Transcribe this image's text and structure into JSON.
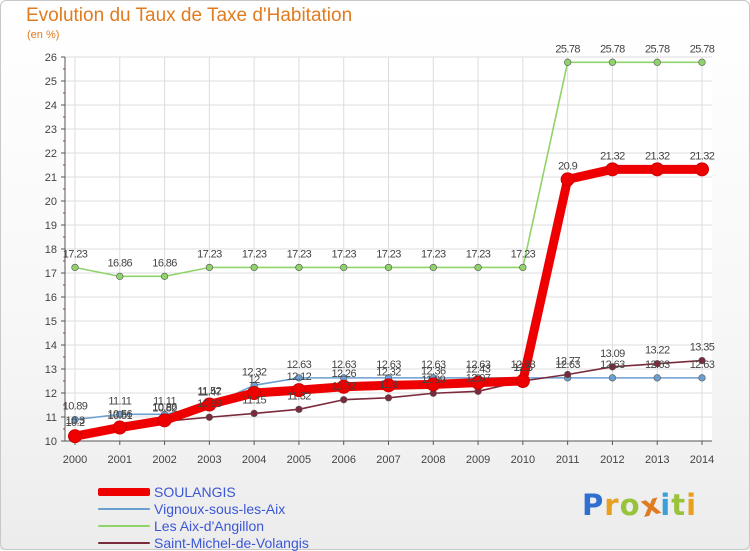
{
  "chart_data": {
    "type": "line",
    "title": "Evolution du Taux de Taxe d'Habitation",
    "unit_label": "(en %)",
    "x": [
      "2000",
      "2001",
      "2002",
      "2003",
      "2004",
      "2005",
      "2006",
      "2007",
      "2008",
      "2009",
      "2010",
      "2011",
      "2012",
      "2013",
      "2014"
    ],
    "ylim": [
      10,
      26
    ],
    "yticks": [
      10,
      11,
      12,
      13,
      14,
      15,
      16,
      17,
      18,
      19,
      20,
      21,
      22,
      23,
      24,
      25,
      26
    ],
    "grid": true,
    "legend_position": "bottom-left",
    "series": [
      {
        "name": "SOULANGIS",
        "color": "#ee0000",
        "values": [
          10.2,
          10.56,
          10.86,
          11.52,
          12.0,
          12.12,
          12.26,
          12.32,
          12.36,
          12.43,
          12.5,
          20.9,
          21.32,
          21.32,
          21.32
        ],
        "labels": [
          "10.2",
          "10.56",
          "10.86",
          "11.52",
          "12",
          "12.12",
          "12.26",
          "12.32",
          "12.36",
          "12.43",
          "12.5",
          "20.9",
          "21.32",
          "21.32",
          "21.32"
        ]
      },
      {
        "name": "Vignoux-sous-les-Aix",
        "color": "#6a9fcf",
        "values": [
          10.89,
          11.11,
          11.11,
          11.47,
          12.32,
          12.63,
          12.63,
          12.63,
          12.63,
          12.63,
          12.63,
          12.63,
          12.63,
          12.63,
          12.63
        ],
        "labels": [
          "10.89",
          "11.11",
          "11.11",
          "11.47",
          "12.32",
          "12.63",
          "12.63",
          "12.63",
          "12.63",
          "12.63",
          "12.63",
          "12.63",
          "12.63",
          "12.63",
          "12.63"
        ]
      },
      {
        "name": "Les Aix-d'Angillon",
        "color": "#8fd36a",
        "values": [
          17.23,
          16.86,
          16.86,
          17.23,
          17.23,
          17.23,
          17.23,
          17.23,
          17.23,
          17.23,
          17.23,
          25.78,
          25.78,
          25.78,
          25.78
        ],
        "labels": [
          "17.23",
          "16.86",
          "16.86",
          "17.23",
          "17.23",
          "17.23",
          "17.23",
          "17.23",
          "17.23",
          "17.23",
          "17.23",
          "25.78",
          "25.78",
          "25.78",
          "25.78"
        ]
      },
      {
        "name": "Saint-Michel-de-Volangis",
        "color": "#7a2a3a",
        "values": [
          10.3,
          10.51,
          10.82,
          10.99,
          11.15,
          11.32,
          11.72,
          11.8,
          11.99,
          12.07,
          12.5,
          12.77,
          13.09,
          13.22,
          13.35
        ],
        "labels": [
          "10.3",
          "10.51",
          "10.82",
          "10.99",
          "11.15",
          "11.32",
          "11.72",
          "11.8",
          "11.99",
          "12.07",
          "12.5",
          "12.77",
          "13.09",
          "13.22",
          "13.35"
        ]
      }
    ]
  },
  "logo": {
    "p": "P",
    "r": "r",
    "o": "o",
    "x": "x",
    "i1": "i",
    "t": "t",
    "i2": "i"
  },
  "colors": {
    "title": "#e07b1f",
    "axis": "#555555",
    "grid": "#dddddd",
    "label": "#444444"
  }
}
